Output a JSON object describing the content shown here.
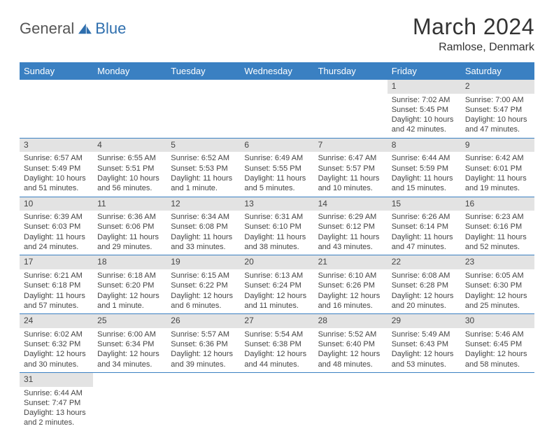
{
  "brand": {
    "general": "General",
    "blue": "Blue"
  },
  "title": "March 2024",
  "location": "Ramlose, Denmark",
  "colors": {
    "header_bg": "#3a80c2",
    "header_text": "#ffffff",
    "daynum_bg": "#e3e3e3",
    "row_divider": "#3a80c2",
    "body_text": "#444444",
    "logo_gray": "#555555",
    "logo_blue": "#2f6fae"
  },
  "day_headers": [
    "Sunday",
    "Monday",
    "Tuesday",
    "Wednesday",
    "Thursday",
    "Friday",
    "Saturday"
  ],
  "weeks": [
    [
      {
        "n": "",
        "lines": [
          "",
          "",
          "",
          ""
        ]
      },
      {
        "n": "",
        "lines": [
          "",
          "",
          "",
          ""
        ]
      },
      {
        "n": "",
        "lines": [
          "",
          "",
          "",
          ""
        ]
      },
      {
        "n": "",
        "lines": [
          "",
          "",
          "",
          ""
        ]
      },
      {
        "n": "",
        "lines": [
          "",
          "",
          "",
          ""
        ]
      },
      {
        "n": "1",
        "lines": [
          "Sunrise: 7:02 AM",
          "Sunset: 5:45 PM",
          "Daylight: 10 hours",
          "and 42 minutes."
        ]
      },
      {
        "n": "2",
        "lines": [
          "Sunrise: 7:00 AM",
          "Sunset: 5:47 PM",
          "Daylight: 10 hours",
          "and 47 minutes."
        ]
      }
    ],
    [
      {
        "n": "3",
        "lines": [
          "Sunrise: 6:57 AM",
          "Sunset: 5:49 PM",
          "Daylight: 10 hours",
          "and 51 minutes."
        ]
      },
      {
        "n": "4",
        "lines": [
          "Sunrise: 6:55 AM",
          "Sunset: 5:51 PM",
          "Daylight: 10 hours",
          "and 56 minutes."
        ]
      },
      {
        "n": "5",
        "lines": [
          "Sunrise: 6:52 AM",
          "Sunset: 5:53 PM",
          "Daylight: 11 hours",
          "and 1 minute."
        ]
      },
      {
        "n": "6",
        "lines": [
          "Sunrise: 6:49 AM",
          "Sunset: 5:55 PM",
          "Daylight: 11 hours",
          "and 5 minutes."
        ]
      },
      {
        "n": "7",
        "lines": [
          "Sunrise: 6:47 AM",
          "Sunset: 5:57 PM",
          "Daylight: 11 hours",
          "and 10 minutes."
        ]
      },
      {
        "n": "8",
        "lines": [
          "Sunrise: 6:44 AM",
          "Sunset: 5:59 PM",
          "Daylight: 11 hours",
          "and 15 minutes."
        ]
      },
      {
        "n": "9",
        "lines": [
          "Sunrise: 6:42 AM",
          "Sunset: 6:01 PM",
          "Daylight: 11 hours",
          "and 19 minutes."
        ]
      }
    ],
    [
      {
        "n": "10",
        "lines": [
          "Sunrise: 6:39 AM",
          "Sunset: 6:03 PM",
          "Daylight: 11 hours",
          "and 24 minutes."
        ]
      },
      {
        "n": "11",
        "lines": [
          "Sunrise: 6:36 AM",
          "Sunset: 6:06 PM",
          "Daylight: 11 hours",
          "and 29 minutes."
        ]
      },
      {
        "n": "12",
        "lines": [
          "Sunrise: 6:34 AM",
          "Sunset: 6:08 PM",
          "Daylight: 11 hours",
          "and 33 minutes."
        ]
      },
      {
        "n": "13",
        "lines": [
          "Sunrise: 6:31 AM",
          "Sunset: 6:10 PM",
          "Daylight: 11 hours",
          "and 38 minutes."
        ]
      },
      {
        "n": "14",
        "lines": [
          "Sunrise: 6:29 AM",
          "Sunset: 6:12 PM",
          "Daylight: 11 hours",
          "and 43 minutes."
        ]
      },
      {
        "n": "15",
        "lines": [
          "Sunrise: 6:26 AM",
          "Sunset: 6:14 PM",
          "Daylight: 11 hours",
          "and 47 minutes."
        ]
      },
      {
        "n": "16",
        "lines": [
          "Sunrise: 6:23 AM",
          "Sunset: 6:16 PM",
          "Daylight: 11 hours",
          "and 52 minutes."
        ]
      }
    ],
    [
      {
        "n": "17",
        "lines": [
          "Sunrise: 6:21 AM",
          "Sunset: 6:18 PM",
          "Daylight: 11 hours",
          "and 57 minutes."
        ]
      },
      {
        "n": "18",
        "lines": [
          "Sunrise: 6:18 AM",
          "Sunset: 6:20 PM",
          "Daylight: 12 hours",
          "and 1 minute."
        ]
      },
      {
        "n": "19",
        "lines": [
          "Sunrise: 6:15 AM",
          "Sunset: 6:22 PM",
          "Daylight: 12 hours",
          "and 6 minutes."
        ]
      },
      {
        "n": "20",
        "lines": [
          "Sunrise: 6:13 AM",
          "Sunset: 6:24 PM",
          "Daylight: 12 hours",
          "and 11 minutes."
        ]
      },
      {
        "n": "21",
        "lines": [
          "Sunrise: 6:10 AM",
          "Sunset: 6:26 PM",
          "Daylight: 12 hours",
          "and 16 minutes."
        ]
      },
      {
        "n": "22",
        "lines": [
          "Sunrise: 6:08 AM",
          "Sunset: 6:28 PM",
          "Daylight: 12 hours",
          "and 20 minutes."
        ]
      },
      {
        "n": "23",
        "lines": [
          "Sunrise: 6:05 AM",
          "Sunset: 6:30 PM",
          "Daylight: 12 hours",
          "and 25 minutes."
        ]
      }
    ],
    [
      {
        "n": "24",
        "lines": [
          "Sunrise: 6:02 AM",
          "Sunset: 6:32 PM",
          "Daylight: 12 hours",
          "and 30 minutes."
        ]
      },
      {
        "n": "25",
        "lines": [
          "Sunrise: 6:00 AM",
          "Sunset: 6:34 PM",
          "Daylight: 12 hours",
          "and 34 minutes."
        ]
      },
      {
        "n": "26",
        "lines": [
          "Sunrise: 5:57 AM",
          "Sunset: 6:36 PM",
          "Daylight: 12 hours",
          "and 39 minutes."
        ]
      },
      {
        "n": "27",
        "lines": [
          "Sunrise: 5:54 AM",
          "Sunset: 6:38 PM",
          "Daylight: 12 hours",
          "and 44 minutes."
        ]
      },
      {
        "n": "28",
        "lines": [
          "Sunrise: 5:52 AM",
          "Sunset: 6:40 PM",
          "Daylight: 12 hours",
          "and 48 minutes."
        ]
      },
      {
        "n": "29",
        "lines": [
          "Sunrise: 5:49 AM",
          "Sunset: 6:43 PM",
          "Daylight: 12 hours",
          "and 53 minutes."
        ]
      },
      {
        "n": "30",
        "lines": [
          "Sunrise: 5:46 AM",
          "Sunset: 6:45 PM",
          "Daylight: 12 hours",
          "and 58 minutes."
        ]
      }
    ],
    [
      {
        "n": "31",
        "lines": [
          "Sunrise: 6:44 AM",
          "Sunset: 7:47 PM",
          "Daylight: 13 hours",
          "and 2 minutes."
        ]
      },
      {
        "n": "",
        "lines": [
          "",
          "",
          "",
          ""
        ]
      },
      {
        "n": "",
        "lines": [
          "",
          "",
          "",
          ""
        ]
      },
      {
        "n": "",
        "lines": [
          "",
          "",
          "",
          ""
        ]
      },
      {
        "n": "",
        "lines": [
          "",
          "",
          "",
          ""
        ]
      },
      {
        "n": "",
        "lines": [
          "",
          "",
          "",
          ""
        ]
      },
      {
        "n": "",
        "lines": [
          "",
          "",
          "",
          ""
        ]
      }
    ]
  ]
}
